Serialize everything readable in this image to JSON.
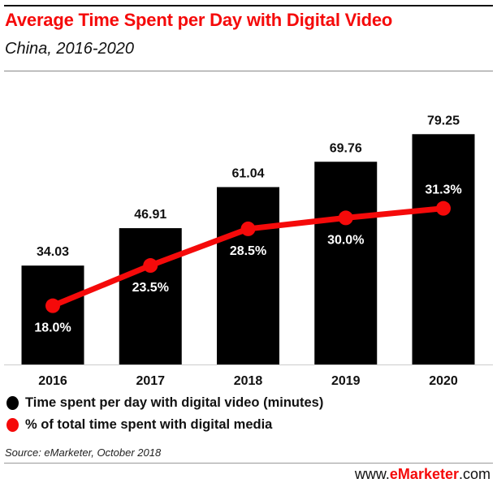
{
  "header": {
    "title": "Average Time Spent per Day with Digital Video",
    "subtitle": "China, 2016-2020"
  },
  "chart_data": {
    "type": "bar+line",
    "categories": [
      "2016",
      "2017",
      "2018",
      "2019",
      "2020"
    ],
    "series": [
      {
        "name": "Time spent per day with digital video (minutes)",
        "type": "bar",
        "values": [
          34.03,
          46.91,
          61.04,
          69.76,
          79.25
        ],
        "labels": [
          "34.03",
          "46.91",
          "61.04",
          "69.76",
          "79.25"
        ],
        "color": "#000000"
      },
      {
        "name": "% of total time spent with digital media",
        "type": "line",
        "values": [
          18.0,
          23.5,
          28.5,
          30.0,
          31.3
        ],
        "labels": [
          "18.0%",
          "23.5%",
          "28.5%",
          "30.0%",
          "31.3%"
        ],
        "color": "#f50a0a"
      }
    ],
    "grid": false,
    "legend": "bottom-left"
  },
  "footer": {
    "source": "Source: eMarketer, October 2018",
    "brand_prefix": "www.",
    "brand_name": "eMarketer",
    "brand_suffix": ".com"
  }
}
